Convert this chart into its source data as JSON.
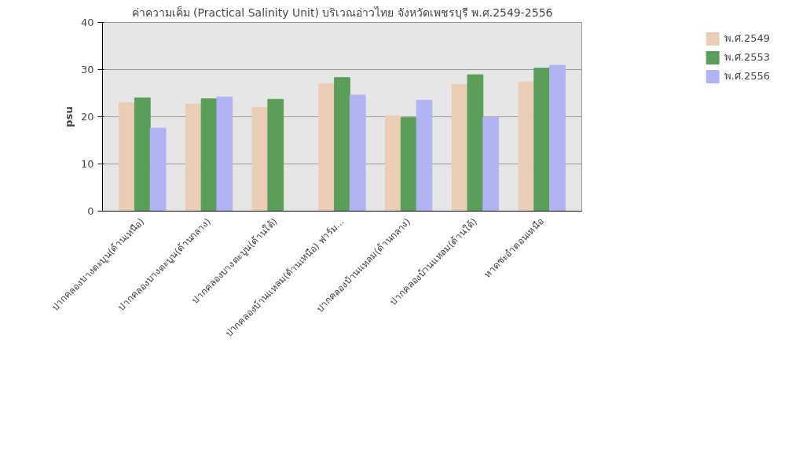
{
  "chart_data": {
    "type": "bar",
    "title": "ค่าความเค็ม (Practical Salinity Unit) บริเวณอ่าวไทย จังหวัดเพชรบุรี พ.ศ.2549-2556",
    "ylabel": "psu",
    "categories": [
      "ปากคลองบางตะบูน(ด้านเหนือ)",
      "ปากคลองบางตะบูน(ด้านกลาง)",
      "ปากคลองบางตะบูน(ด้านใต้)",
      "ปากคลองบ้านแหลม(ด้านเหนือ) ฟาร์ม...",
      "ปากคลองบ้านแหลม(ด้านกลาง)",
      "ปากคลองบ้านแหลม(ด้านใต้)",
      "หาดชะอำตอนเหนือ"
    ],
    "series": [
      {
        "name": "พ.ศ.2549",
        "color": "#e9cdb4",
        "values": [
          23.0,
          22.7,
          22.0,
          27.0,
          20.2,
          26.8,
          27.4
        ]
      },
      {
        "name": "พ.ศ.2553",
        "color": "#5a9e5a",
        "values": [
          24.0,
          23.8,
          23.7,
          28.3,
          19.8,
          28.9,
          30.3
        ]
      },
      {
        "name": "พ.ศ.2556",
        "color": "#b0b4f2",
        "values": [
          17.6,
          24.2,
          0,
          24.6,
          23.5,
          19.9,
          30.9
        ]
      }
    ],
    "ylim": [
      0,
      40
    ],
    "yticks": [
      0,
      10,
      20,
      30,
      40
    ],
    "grid": "y",
    "legend": "right"
  }
}
